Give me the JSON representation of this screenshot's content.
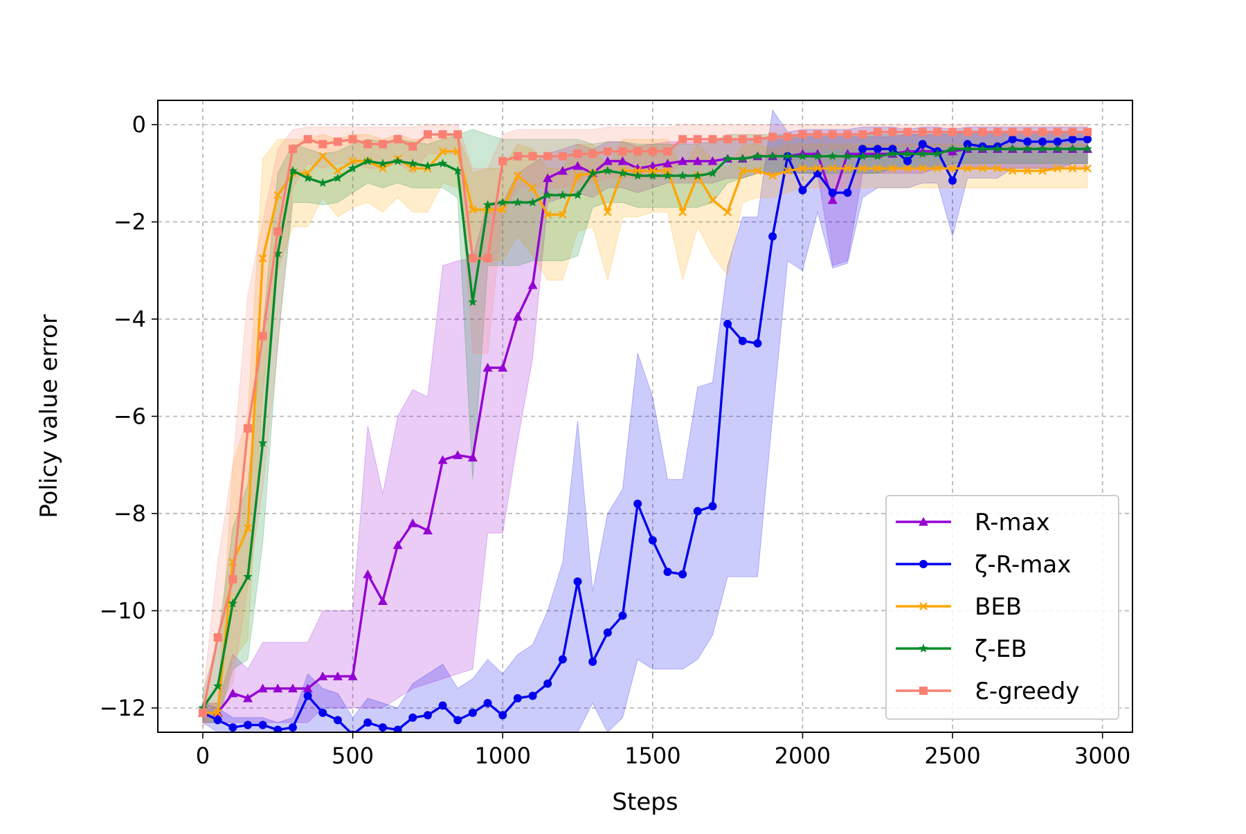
{
  "chart_data": {
    "type": "line",
    "title": "",
    "xlabel": "Steps",
    "ylabel": "Policy value error",
    "xlim": [
      -150,
      3100
    ],
    "ylim": [
      -12.5,
      0.5
    ],
    "xticks": [
      0,
      500,
      1000,
      1500,
      2000,
      2500,
      3000
    ],
    "xtick_labels": [
      "0",
      "500",
      "1000",
      "1500",
      "2000",
      "2500",
      "3000"
    ],
    "yticks": [
      0,
      -2,
      -4,
      -6,
      -8,
      -10,
      -12
    ],
    "ytick_labels": [
      "0",
      "−2",
      "−4",
      "−6",
      "−8",
      "−10",
      "−12"
    ],
    "grid": true,
    "legend_position": "lower-right",
    "x": [
      0,
      50,
      100,
      150,
      200,
      250,
      300,
      350,
      400,
      450,
      500,
      550,
      600,
      650,
      700,
      750,
      800,
      850,
      900,
      950,
      1000,
      1050,
      1100,
      1150,
      1200,
      1250,
      1300,
      1350,
      1400,
      1450,
      1500,
      1550,
      1600,
      1650,
      1700,
      1750,
      1800,
      1850,
      1900,
      1950,
      2000,
      2050,
      2100,
      2150,
      2200,
      2250,
      2300,
      2350,
      2400,
      2450,
      2500,
      2550,
      2600,
      2650,
      2700,
      2750,
      2800,
      2850,
      2900,
      2950
    ],
    "series": [
      {
        "name": "R-max",
        "color": "#9400D3",
        "marker": "triangle",
        "values": [
          -12.1,
          -12.1,
          -11.7,
          -11.8,
          -11.6,
          -11.6,
          -11.6,
          -11.6,
          -11.35,
          -11.35,
          -11.35,
          -9.25,
          -9.8,
          -8.65,
          -8.2,
          -8.35,
          -6.9,
          -6.8,
          -6.85,
          -5.0,
          -5.0,
          -3.95,
          -3.3,
          -1.1,
          -0.95,
          -0.85,
          -1.0,
          -0.75,
          -0.75,
          -0.9,
          -0.85,
          -0.8,
          -0.75,
          -0.75,
          -0.75,
          -0.7,
          -0.7,
          -0.65,
          -0.65,
          -0.65,
          -0.6,
          -0.6,
          -1.55,
          -0.6,
          -0.6,
          -0.6,
          -0.6,
          -0.55,
          -0.55,
          -0.55,
          -0.55,
          -0.5,
          -0.5,
          -0.5,
          -0.5,
          -0.5,
          -0.5,
          -0.5,
          -0.5,
          -0.5
        ],
        "band_low": [
          -12.3,
          -12.3,
          -12.3,
          -12.3,
          -12.3,
          -12.3,
          -12.3,
          -12.3,
          -12.0,
          -12.0,
          -12.0,
          -12.0,
          -12.0,
          -11.8,
          -11.6,
          -11.5,
          -11.4,
          -11.3,
          -11.2,
          -8.4,
          -8.4,
          -6.5,
          -4.8,
          -1.6,
          -1.5,
          -1.4,
          -1.5,
          -1.3,
          -1.3,
          -1.4,
          -1.3,
          -1.2,
          -1.2,
          -1.2,
          -1.2,
          -1.1,
          -1.1,
          -1.0,
          -1.0,
          -1.0,
          -1.0,
          -1.0,
          -2.9,
          -2.8,
          -1.0,
          -1.0,
          -1.0,
          -1.0,
          -1.0,
          -0.9,
          -0.9,
          -0.9,
          -0.9,
          -0.9,
          -0.9,
          -0.9,
          -0.9,
          -0.9,
          -0.9,
          -0.9
        ],
        "band_high": [
          -11.9,
          -11.9,
          -10.9,
          -11.2,
          -10.65,
          -10.65,
          -10.65,
          -10.65,
          -10.0,
          -10.0,
          -10.0,
          -6.2,
          -7.6,
          -6.0,
          -5.45,
          -5.6,
          -2.9,
          -2.8,
          -2.75,
          -1.6,
          -1.6,
          -1.0,
          -0.8,
          -0.6,
          -0.5,
          -0.4,
          -0.5,
          -0.35,
          -0.35,
          -0.45,
          -0.4,
          -0.35,
          -0.35,
          -0.35,
          -0.35,
          -0.3,
          -0.3,
          -0.3,
          -0.3,
          -0.3,
          -0.25,
          -0.25,
          -0.25,
          -0.25,
          -0.25,
          -0.25,
          -0.25,
          -0.2,
          -0.2,
          -0.2,
          -0.2,
          -0.15,
          -0.15,
          -0.15,
          -0.15,
          -0.15,
          -0.15,
          -0.15,
          -0.15,
          -0.15
        ]
      },
      {
        "name": "ζ-R-max",
        "color": "#0000EE",
        "marker": "circle",
        "values": [
          -12.1,
          -12.25,
          -12.4,
          -12.35,
          -12.35,
          -12.45,
          -12.4,
          -11.75,
          -12.1,
          -12.25,
          -12.55,
          -12.3,
          -12.4,
          -12.45,
          -12.2,
          -12.15,
          -11.95,
          -12.25,
          -12.1,
          -11.9,
          -12.15,
          -11.8,
          -11.75,
          -11.5,
          -11.0,
          -9.4,
          -11.05,
          -10.45,
          -10.1,
          -7.8,
          -8.55,
          -9.2,
          -9.25,
          -7.95,
          -7.85,
          -4.1,
          -4.45,
          -4.5,
          -2.3,
          -0.65,
          -1.35,
          -1.0,
          -1.4,
          -1.4,
          -0.5,
          -0.5,
          -0.5,
          -0.75,
          -0.4,
          -0.55,
          -1.15,
          -0.4,
          -0.45,
          -0.45,
          -0.3,
          -0.35,
          -0.35,
          -0.35,
          -0.3,
          -0.3
        ],
        "band_low": [
          -12.3,
          -12.5,
          -12.5,
          -12.5,
          -12.5,
          -12.5,
          -12.5,
          -12.5,
          -12.5,
          -12.5,
          -12.5,
          -12.5,
          -12.5,
          -12.5,
          -12.5,
          -12.5,
          -12.5,
          -12.5,
          -12.5,
          -12.5,
          -12.5,
          -12.5,
          -12.5,
          -12.5,
          -12.5,
          -12.5,
          -11.9,
          -12.5,
          -12.2,
          -11.0,
          -11.2,
          -11.2,
          -11.2,
          -11.0,
          -10.5,
          -9.3,
          -9.3,
          -9.3,
          -6.0,
          -2.8,
          -3.0,
          -1.8,
          -2.95,
          -2.85,
          -1.5,
          -1.3,
          -1.3,
          -1.3,
          -1.2,
          -1.2,
          -2.3,
          -1.1,
          -1.1,
          -1.1,
          -0.9,
          -0.9,
          -0.9,
          -0.9,
          -0.8,
          -0.8
        ],
        "band_high": [
          -11.9,
          -12.0,
          -12.2,
          -12.2,
          -12.2,
          -12.3,
          -12.2,
          -11.3,
          -11.6,
          -11.7,
          -12.2,
          -11.8,
          -11.9,
          -12.0,
          -11.5,
          -11.3,
          -11.1,
          -11.6,
          -11.4,
          -11.0,
          -11.3,
          -10.9,
          -10.7,
          -10.0,
          -9.0,
          -6.1,
          -9.6,
          -8.0,
          -7.5,
          -4.7,
          -5.6,
          -7.3,
          -7.3,
          -5.4,
          -5.3,
          -2.9,
          -1.9,
          -1.9,
          0.3,
          -0.15,
          -0.1,
          -0.1,
          -0.1,
          -0.1,
          -0.05,
          -0.05,
          -0.05,
          -0.1,
          -0.05,
          -0.05,
          -0.1,
          -0.05,
          -0.05,
          -0.05,
          -0.05,
          -0.05,
          -0.05,
          -0.05,
          -0.05,
          -0.05
        ]
      },
      {
        "name": "BEB",
        "color": "#FFA500",
        "marker": "x",
        "values": [
          -12.1,
          -12.1,
          -9.0,
          -8.3,
          -2.75,
          -1.45,
          -1.0,
          -1.0,
          -0.65,
          -0.95,
          -0.75,
          -0.75,
          -0.9,
          -0.7,
          -0.9,
          -0.9,
          -0.55,
          -0.55,
          -1.75,
          -1.75,
          -1.75,
          -1.05,
          -1.3,
          -1.85,
          -1.85,
          -1.05,
          -1.0,
          -1.8,
          -0.95,
          -0.95,
          -0.95,
          -0.95,
          -1.8,
          -1.05,
          -1.55,
          -1.8,
          -0.95,
          -0.95,
          -1.05,
          -0.95,
          -0.9,
          -0.9,
          -0.9,
          -0.9,
          -0.9,
          -0.9,
          -0.9,
          -0.9,
          -0.9,
          -0.9,
          -0.9,
          -0.9,
          -0.9,
          -0.9,
          -0.95,
          -0.95,
          -0.95,
          -0.9,
          -0.9,
          -0.9
        ],
        "band_low": [
          -12.3,
          -12.3,
          -11.0,
          -10.6,
          -5.5,
          -3.0,
          -2.1,
          -2.1,
          -1.5,
          -1.9,
          -1.7,
          -1.6,
          -1.8,
          -1.5,
          -1.8,
          -1.8,
          -1.2,
          -1.3,
          -2.8,
          -2.8,
          -2.8,
          -2.3,
          -2.7,
          -3.2,
          -3.2,
          -2.2,
          -2.1,
          -3.2,
          -1.9,
          -1.9,
          -1.8,
          -1.8,
          -3.2,
          -2.1,
          -2.7,
          -3.1,
          -1.6,
          -1.5,
          -1.5,
          -1.4,
          -1.3,
          -1.3,
          -1.3,
          -1.3,
          -1.3,
          -1.3,
          -1.3,
          -1.3,
          -1.3,
          -1.3,
          -1.3,
          -1.3,
          -1.3,
          -1.3,
          -1.3,
          -1.3,
          -1.3,
          -1.3,
          -1.3,
          -1.3
        ],
        "band_high": [
          -11.9,
          -11.9,
          -7.0,
          -6.0,
          -0.7,
          -0.3,
          -0.3,
          -0.3,
          -0.2,
          -0.3,
          -0.2,
          -0.2,
          -0.3,
          -0.2,
          -0.3,
          -0.3,
          -0.2,
          -0.2,
          -1.0,
          -0.9,
          -0.9,
          -0.4,
          -0.5,
          -0.9,
          -0.9,
          -0.4,
          -0.4,
          -0.9,
          -0.3,
          -0.3,
          -0.3,
          -0.3,
          -0.9,
          -0.4,
          -0.7,
          -0.9,
          -0.4,
          -0.4,
          -0.5,
          -0.4,
          -0.4,
          -0.4,
          -0.4,
          -0.4,
          -0.4,
          -0.4,
          -0.4,
          -0.4,
          -0.4,
          -0.4,
          -0.4,
          -0.4,
          -0.4,
          -0.4,
          -0.45,
          -0.45,
          -0.45,
          -0.4,
          -0.4,
          -0.4
        ]
      },
      {
        "name": "ζ-EB",
        "color": "#008B2B",
        "marker": "star",
        "values": [
          -12.0,
          -11.55,
          -9.85,
          -9.3,
          -6.55,
          -2.65,
          -0.95,
          -1.1,
          -1.2,
          -1.1,
          -0.9,
          -0.75,
          -0.8,
          -0.75,
          -0.8,
          -0.85,
          -0.8,
          -0.95,
          -3.65,
          -1.65,
          -1.6,
          -1.6,
          -1.6,
          -1.45,
          -1.45,
          -1.45,
          -1.0,
          -0.95,
          -1.0,
          -1.05,
          -1.05,
          -1.05,
          -1.05,
          -1.05,
          -1.0,
          -0.7,
          -0.7,
          -0.65,
          -0.65,
          -0.65,
          -0.65,
          -0.65,
          -0.65,
          -0.65,
          -0.65,
          -0.65,
          -0.6,
          -0.6,
          -0.6,
          -0.6,
          -0.5,
          -0.5,
          -0.5,
          -0.5,
          -0.5,
          -0.5,
          -0.5,
          -0.5,
          -0.5,
          -0.5
        ],
        "band_low": [
          -12.3,
          -12.3,
          -11.2,
          -11.0,
          -8.6,
          -4.5,
          -1.6,
          -1.6,
          -1.65,
          -1.6,
          -1.4,
          -1.2,
          -1.3,
          -1.2,
          -1.3,
          -1.3,
          -1.3,
          -1.5,
          -7.3,
          -2.9,
          -2.9,
          -2.9,
          -2.8,
          -2.8,
          -2.8,
          -2.7,
          -1.7,
          -1.6,
          -1.6,
          -1.7,
          -1.7,
          -1.7,
          -1.7,
          -1.7,
          -1.6,
          -1.2,
          -1.1,
          -1.0,
          -1.0,
          -1.0,
          -1.0,
          -1.0,
          -1.0,
          -1.0,
          -1.0,
          -1.0,
          -0.9,
          -0.9,
          -0.9,
          -0.9,
          -0.8,
          -0.8,
          -0.8,
          -0.8,
          -0.8,
          -0.8,
          -0.8,
          -0.8,
          -0.8,
          -0.8
        ],
        "band_high": [
          -11.7,
          -10.6,
          -8.3,
          -7.4,
          -4.2,
          -1.0,
          -0.4,
          -0.5,
          -0.6,
          -0.55,
          -0.4,
          -0.3,
          -0.35,
          -0.3,
          -0.35,
          -0.4,
          -0.3,
          -0.2,
          -0.1,
          -0.2,
          -0.3,
          -0.3,
          -0.3,
          -0.3,
          -0.3,
          -0.3,
          -0.4,
          -0.35,
          -0.35,
          -0.4,
          -0.4,
          -0.4,
          -0.4,
          -0.4,
          -0.35,
          -0.2,
          -0.2,
          -0.2,
          -0.2,
          -0.2,
          -0.2,
          -0.2,
          -0.2,
          -0.2,
          -0.2,
          -0.2,
          -0.2,
          -0.2,
          -0.2,
          -0.2,
          -0.15,
          -0.15,
          -0.15,
          -0.15,
          -0.15,
          -0.15,
          -0.15,
          -0.15,
          -0.15,
          -0.15
        ]
      },
      {
        "name": "Ɛ-greedy",
        "color": "#FA8072",
        "marker": "square",
        "values": [
          -12.1,
          -10.55,
          -9.35,
          -6.25,
          -4.35,
          -2.2,
          -0.5,
          -0.3,
          -0.4,
          -0.35,
          -0.3,
          -0.4,
          -0.4,
          -0.3,
          -0.45,
          -0.2,
          -0.2,
          -0.2,
          -2.75,
          -2.75,
          -0.75,
          -0.65,
          -0.65,
          -0.65,
          -0.65,
          -0.6,
          -0.6,
          -0.55,
          -0.55,
          -0.55,
          -0.55,
          -0.55,
          -0.3,
          -0.3,
          -0.3,
          -0.3,
          -0.3,
          -0.3,
          -0.25,
          -0.25,
          -0.2,
          -0.2,
          -0.2,
          -0.2,
          -0.2,
          -0.15,
          -0.15,
          -0.15,
          -0.15,
          -0.15,
          -0.15,
          -0.15,
          -0.15,
          -0.15,
          -0.15,
          -0.15,
          -0.15,
          -0.15,
          -0.15,
          -0.15
        ],
        "band_low": [
          -12.4,
          -12.0,
          -11.5,
          -9.5,
          -7.5,
          -4.6,
          -1.3,
          -0.8,
          -0.9,
          -0.8,
          -0.8,
          -0.9,
          -0.9,
          -0.8,
          -1.0,
          -0.6,
          -0.6,
          -0.6,
          -4.7,
          -4.7,
          -1.8,
          -1.3,
          -1.3,
          -1.3,
          -1.3,
          -1.2,
          -1.2,
          -1.1,
          -1.1,
          -1.1,
          -1.1,
          -1.1,
          -0.7,
          -0.7,
          -0.7,
          -0.7,
          -0.7,
          -0.7,
          -0.6,
          -0.6,
          -0.5,
          -0.5,
          -0.5,
          -0.5,
          -0.5,
          -0.45,
          -0.45,
          -0.45,
          -0.45,
          -0.45,
          -0.45,
          -0.45,
          -0.45,
          -0.45,
          -0.45,
          -0.45,
          -0.45,
          -0.45,
          -0.45,
          -0.45
        ],
        "band_high": [
          -11.8,
          -9.0,
          -7.0,
          -3.5,
          -2.0,
          -0.5,
          -0.1,
          -0.05,
          -0.05,
          -0.05,
          -0.05,
          -0.05,
          -0.05,
          -0.05,
          -0.05,
          0.0,
          0.0,
          0.0,
          -0.9,
          -0.9,
          -0.2,
          -0.1,
          -0.1,
          -0.1,
          -0.1,
          -0.1,
          -0.1,
          -0.05,
          -0.05,
          -0.05,
          -0.05,
          -0.05,
          0.0,
          0.0,
          0.0,
          0.0,
          0.0,
          0.0,
          0.0,
          0.0,
          0.0,
          0.0,
          0.0,
          0.0,
          0.0,
          0.0,
          0.0,
          0.0,
          0.0,
          0.0,
          0.0,
          0.0,
          0.0,
          0.0,
          0.0,
          0.0,
          0.0,
          0.0,
          0.0,
          0.0
        ]
      }
    ]
  }
}
